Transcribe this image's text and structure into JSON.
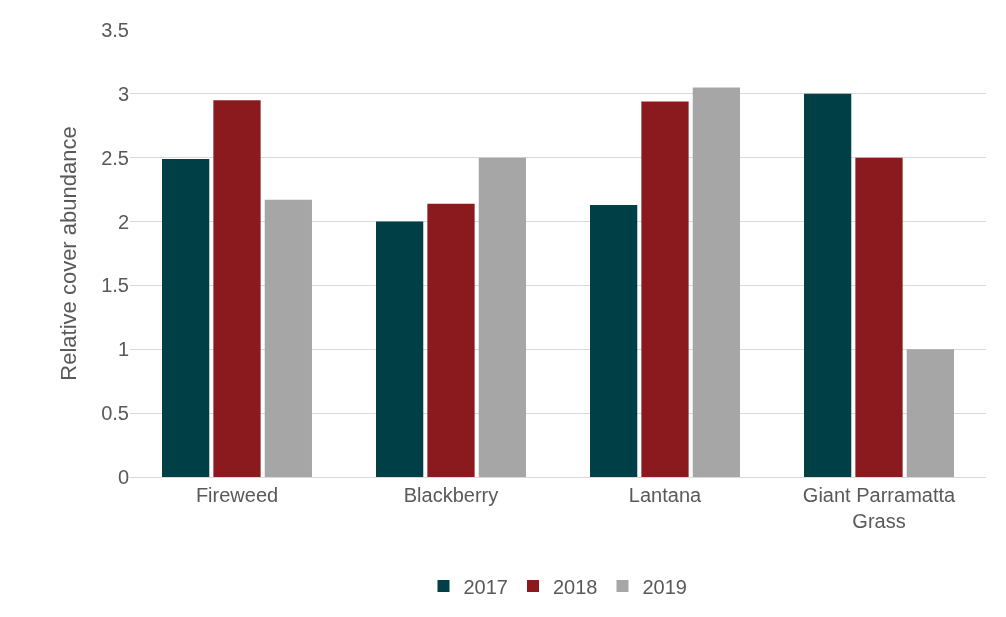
{
  "chart_data": {
    "type": "bar",
    "ylabel": "Relative cover abundance",
    "categories": [
      "Fireweed",
      "Blackberry",
      "Lantana",
      "Giant Parramatta Grass"
    ],
    "series": [
      {
        "name": "2017",
        "color": "#003f45",
        "values": [
          2.49,
          2.0,
          2.13,
          3.0
        ]
      },
      {
        "name": "2018",
        "color": "#8b1a1e",
        "values": [
          2.95,
          2.14,
          2.94,
          2.5
        ]
      },
      {
        "name": "2019",
        "color": "#a6a6a6",
        "values": [
          2.17,
          2.5,
          3.05,
          1.0
        ]
      }
    ],
    "ylim": [
      0,
      3.5
    ],
    "yticks": [
      0,
      0.5,
      1,
      1.5,
      2,
      2.5,
      3,
      3.5
    ],
    "grid": "y",
    "legend": "bottom"
  }
}
